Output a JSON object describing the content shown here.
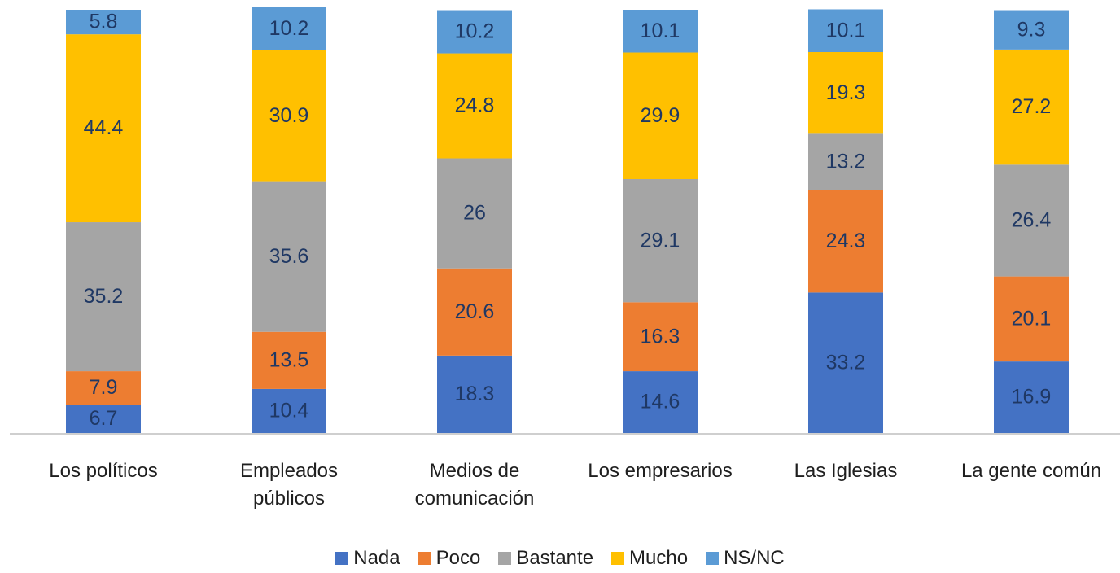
{
  "chart_data": {
    "type": "stacked_bar",
    "categories": [
      "Los políticos",
      "Empleados públicos",
      "Medios de comunicación",
      "Los empresarios",
      "Las Iglesias",
      "La gente común"
    ],
    "series": [
      {
        "name": "Nada",
        "color": "#4472c4",
        "values": [
          6.7,
          10.4,
          18.3,
          14.6,
          33.2,
          16.9
        ]
      },
      {
        "name": "Poco",
        "color": "#ed7d31",
        "values": [
          7.9,
          13.5,
          20.6,
          16.3,
          24.3,
          20.1
        ]
      },
      {
        "name": "Bastante",
        "color": "#a5a5a5",
        "values": [
          35.2,
          35.6,
          26,
          29.1,
          13.2,
          26.4
        ]
      },
      {
        "name": "Mucho",
        "color": "#ffc000",
        "values": [
          44.4,
          30.9,
          24.8,
          29.9,
          19.3,
          27.2
        ]
      },
      {
        "name": "NS/NC",
        "color": "#5b9bd5",
        "values": [
          5.8,
          10.2,
          10.2,
          10.1,
          10.1,
          9.3
        ]
      }
    ],
    "legend": "bottom"
  }
}
